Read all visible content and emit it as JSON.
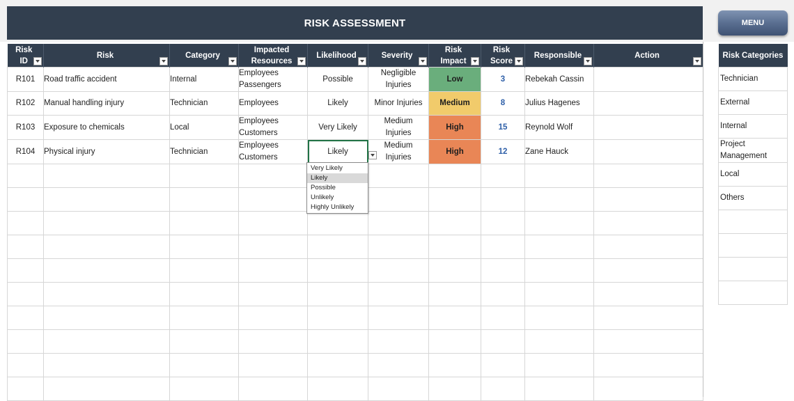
{
  "header": {
    "title": "RISK ASSESSMENT",
    "menu_label": "MENU"
  },
  "columns": [
    {
      "l1": "Risk",
      "l2": "ID"
    },
    {
      "l1": "",
      "l2": "Risk"
    },
    {
      "l1": "",
      "l2": "Category"
    },
    {
      "l1": "Impacted",
      "l2": "Resources"
    },
    {
      "l1": "",
      "l2": "Likelihood"
    },
    {
      "l1": "",
      "l2": "Severity"
    },
    {
      "l1": "Risk",
      "l2": "Impact"
    },
    {
      "l1": "Risk",
      "l2": "Score"
    },
    {
      "l1": "",
      "l2": "Responsible"
    },
    {
      "l1": "",
      "l2": "Action"
    }
  ],
  "rows": [
    {
      "id": "R101",
      "risk": "Road traffic accident",
      "category": "Internal",
      "resources": [
        "Employees",
        "Passengers"
      ],
      "likelihood": "Possible",
      "severity": [
        "Negligible",
        "Injuries"
      ],
      "impact": "Low",
      "score": "3",
      "responsible": "Rebekah Cassin",
      "action": ""
    },
    {
      "id": "R102",
      "risk": "Manual handling injury",
      "category": "Technician",
      "resources": [
        "Employees",
        ""
      ],
      "likelihood": "Likely",
      "severity": [
        "Minor Injuries",
        ""
      ],
      "impact": "Medium",
      "score": "8",
      "responsible": "Julius Hagenes",
      "action": ""
    },
    {
      "id": "R103",
      "risk": "Exposure to chemicals",
      "category": "Local",
      "resources": [
        "Employees",
        "Customers"
      ],
      "likelihood": "Very Likely",
      "severity": [
        "Medium",
        "Injuries"
      ],
      "impact": "High",
      "score": "15",
      "responsible": "Reynold Wolf",
      "action": ""
    },
    {
      "id": "R104",
      "risk": "Physical injury",
      "category": "Technician",
      "resources": [
        "Employees",
        "Customers"
      ],
      "likelihood": "Likely",
      "severity": [
        "Medium",
        "Injuries"
      ],
      "impact": "High",
      "score": "12",
      "responsible": "Zane Hauck",
      "action": ""
    }
  ],
  "empty_rows": 10,
  "impact_colors": {
    "Low": "#6aae7c",
    "Medium": "#f1cb6b",
    "High": "#e98656"
  },
  "likelihood_dropdown": {
    "options": [
      "Very Likely",
      "Likely",
      "Possible",
      "Unlikely",
      "Highly Unlikely"
    ],
    "highlighted": "Likely"
  },
  "categories_panel": {
    "title": "Risk Categories",
    "items": [
      "Technician",
      "External",
      "Internal",
      "Project Management",
      "Local",
      "Others"
    ],
    "empty_rows": 4
  }
}
